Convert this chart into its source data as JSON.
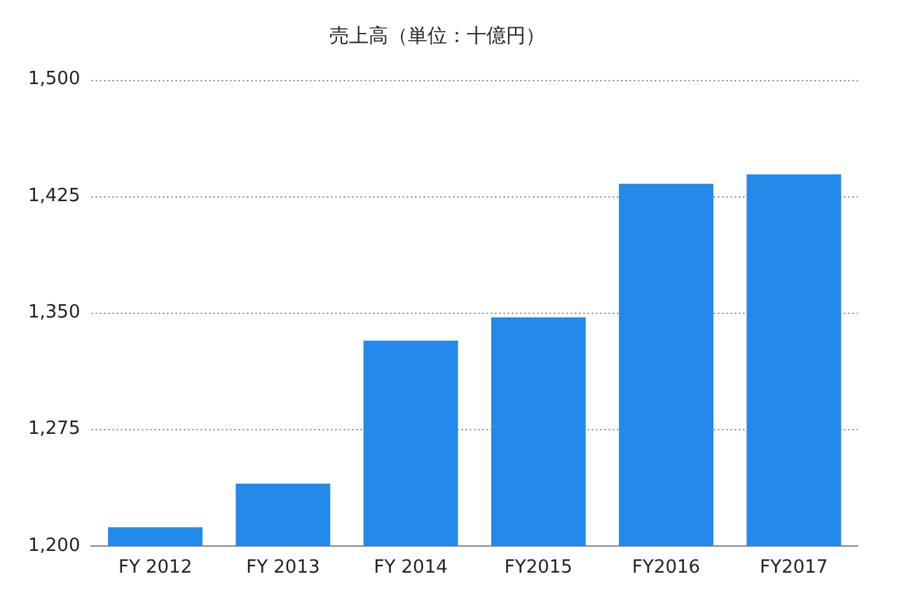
{
  "chart_data": {
    "type": "bar",
    "title": "売上高（単位：十億円）",
    "categories": [
      "FY 2012",
      "FY 2013",
      "FY 2014",
      "FY2015",
      "FY2016",
      "FY2017"
    ],
    "values": [
      1212,
      1240,
      1332,
      1347,
      1433,
      1439
    ],
    "color": "#2389ea",
    "ylim": [
      1200,
      1500
    ],
    "yticks": [
      {
        "value": 1200,
        "label": "1,200"
      },
      {
        "value": 1275,
        "label": "1,275"
      },
      {
        "value": 1350,
        "label": "1,350"
      },
      {
        "value": 1425,
        "label": "1,425"
      },
      {
        "value": 1500,
        "label": "1,500"
      }
    ],
    "grid": "y"
  }
}
